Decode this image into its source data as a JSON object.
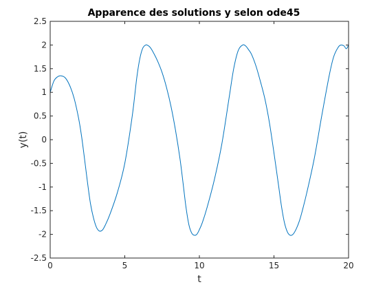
{
  "chart_data": {
    "type": "line",
    "title": "Apparence des solutions y selon ode45",
    "xlabel": "t",
    "ylabel": "y(t)",
    "xlim": [
      0,
      20
    ],
    "ylim": [
      -2.5,
      2.5
    ],
    "grid": false,
    "box": true,
    "x_ticks": [
      "0",
      "5",
      "10",
      "15",
      "20"
    ],
    "y_ticks": [
      "2.5",
      "2",
      "1.5",
      "1",
      "0.5",
      "0",
      "-0.5",
      "-1",
      "-1.5",
      "-2",
      "-2.5"
    ],
    "line_color": "#0072BD",
    "series": [
      {
        "x": [
          0,
          0.25,
          0.5,
          0.7,
          1.0,
          1.3,
          1.6,
          1.9,
          2.1,
          2.3,
          2.5,
          2.7,
          2.9,
          3.1,
          3.3,
          3.5,
          3.7,
          4.0,
          4.5,
          5.0,
          5.5,
          5.8,
          6.0,
          6.2,
          6.4,
          6.55,
          6.7,
          6.9,
          7.2,
          7.5,
          7.8,
          8.1,
          8.4,
          8.7,
          8.9,
          9.1,
          9.3,
          9.5,
          9.7,
          9.85,
          10.0,
          10.2,
          10.5,
          11.0,
          11.5,
          12.0,
          12.3,
          12.6,
          12.9,
          13.1,
          13.3,
          13.5,
          13.8,
          14.1,
          14.4,
          14.7,
          15.0,
          15.3,
          15.5,
          15.7,
          15.9,
          16.1,
          16.3,
          16.5,
          16.7,
          16.9,
          17.2,
          17.7,
          18.2,
          18.7,
          19.0,
          19.3,
          19.5,
          19.7,
          19.85,
          20.0
        ],
        "y": [
          1.0,
          1.24,
          1.33,
          1.35,
          1.31,
          1.15,
          0.88,
          0.46,
          0.08,
          -0.4,
          -0.9,
          -1.35,
          -1.65,
          -1.85,
          -1.93,
          -1.91,
          -1.8,
          -1.58,
          -1.12,
          -0.5,
          0.5,
          1.3,
          1.7,
          1.93,
          2.0,
          1.99,
          1.95,
          1.85,
          1.66,
          1.42,
          1.1,
          0.7,
          0.2,
          -0.4,
          -0.9,
          -1.42,
          -1.8,
          -1.98,
          -2.02,
          -1.99,
          -1.9,
          -1.75,
          -1.45,
          -0.85,
          -0.1,
          0.9,
          1.5,
          1.88,
          2.0,
          1.98,
          1.9,
          1.8,
          1.55,
          1.22,
          0.85,
          0.35,
          -0.28,
          -0.95,
          -1.4,
          -1.75,
          -1.95,
          -2.02,
          -1.99,
          -1.88,
          -1.72,
          -1.5,
          -1.12,
          -0.4,
          0.5,
          1.35,
          1.75,
          1.95,
          2.0,
          1.98,
          1.92,
          2.0
        ]
      }
    ]
  }
}
